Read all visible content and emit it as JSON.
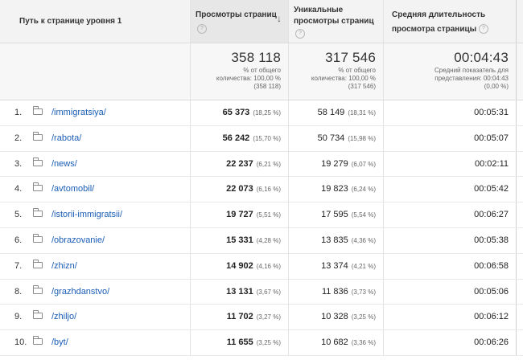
{
  "header": {
    "col_path": "Путь к странице уровня 1",
    "col_pageviews": "Просмотры страниц",
    "col_unique_1": "Уникальные",
    "col_unique_2": "просмотры страниц",
    "col_duration_1": "Средняя длительность",
    "col_duration_2": "просмотра страницы",
    "help_glyph": "?",
    "sort_glyph": "↓"
  },
  "totals": {
    "pageviews": "358 118",
    "pageviews_note_1": "% от общего",
    "pageviews_note_2": "количества: 100,00 %",
    "pageviews_note_3": "(358 118)",
    "unique": "317 546",
    "unique_note_1": "% от общего",
    "unique_note_2": "количества: 100,00 %",
    "unique_note_3": "(317 546)",
    "duration": "00:04:43",
    "duration_note_1": "Средний показатель для",
    "duration_note_2": "представления: 00:04:43",
    "duration_note_3": "(0,00 %)"
  },
  "rows": [
    {
      "n": "1.",
      "path": "/immigratsiya/",
      "pv": "65 373",
      "pv_pct": "(18,25 %)",
      "u": "58 149",
      "u_pct": "(18,31 %)",
      "t": "00:05:31"
    },
    {
      "n": "2.",
      "path": "/rabota/",
      "pv": "56 242",
      "pv_pct": "(15,70 %)",
      "u": "50 734",
      "u_pct": "(15,98 %)",
      "t": "00:05:07"
    },
    {
      "n": "3.",
      "path": "/news/",
      "pv": "22 237",
      "pv_pct": "(6,21 %)",
      "u": "19 279",
      "u_pct": "(6,07 %)",
      "t": "00:02:11"
    },
    {
      "n": "4.",
      "path": "/avtomobil/",
      "pv": "22 073",
      "pv_pct": "(6,16 %)",
      "u": "19 823",
      "u_pct": "(6,24 %)",
      "t": "00:05:42"
    },
    {
      "n": "5.",
      "path": "/istorii-immigratsii/",
      "pv": "19 727",
      "pv_pct": "(5,51 %)",
      "u": "17 595",
      "u_pct": "(5,54 %)",
      "t": "00:06:27"
    },
    {
      "n": "6.",
      "path": "/obrazovanie/",
      "pv": "15 331",
      "pv_pct": "(4,28 %)",
      "u": "13 835",
      "u_pct": "(4,36 %)",
      "t": "00:05:38"
    },
    {
      "n": "7.",
      "path": "/zhizn/",
      "pv": "14 902",
      "pv_pct": "(4,16 %)",
      "u": "13 374",
      "u_pct": "(4,21 %)",
      "t": "00:06:58"
    },
    {
      "n": "8.",
      "path": "/grazhdanstvo/",
      "pv": "13 131",
      "pv_pct": "(3,67 %)",
      "u": "11 836",
      "u_pct": "(3,73 %)",
      "t": "00:05:06"
    },
    {
      "n": "9.",
      "path": "/zhiljo/",
      "pv": "11 702",
      "pv_pct": "(3,27 %)",
      "u": "10 328",
      "u_pct": "(3,25 %)",
      "t": "00:06:12"
    },
    {
      "n": "10.",
      "path": "/byt/",
      "pv": "11 655",
      "pv_pct": "(3,25 %)",
      "u": "10 682",
      "u_pct": "(3,36 %)",
      "t": "00:06:26"
    }
  ]
}
